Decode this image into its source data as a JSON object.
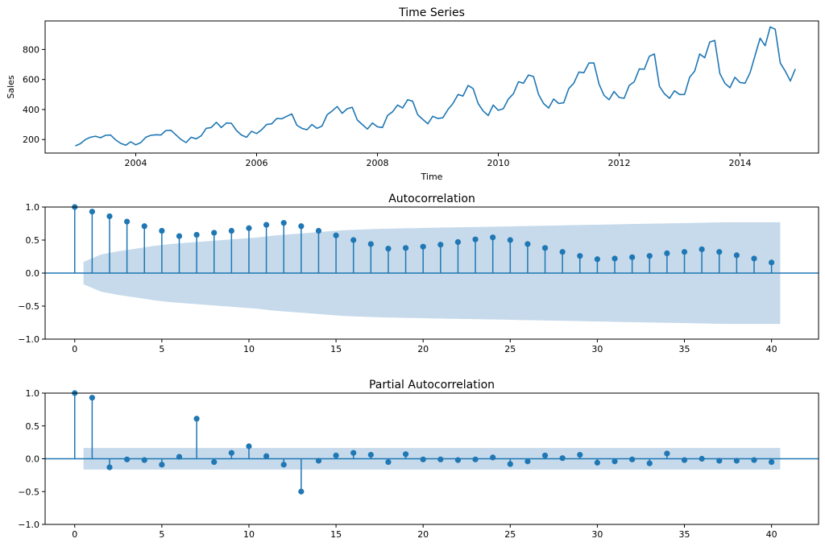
{
  "chart_data": [
    {
      "type": "line",
      "title": "Time Series",
      "xlabel": "Time",
      "ylabel": "Sales",
      "xlim": [
        2002.5,
        2015.3
      ],
      "ylim": [
        110,
        990
      ],
      "xticks": [
        2004,
        2006,
        2008,
        2010,
        2012,
        2014
      ],
      "xtick_labels": [
        "2004",
        "2006",
        "2008",
        "2010",
        "2012",
        "2014"
      ],
      "yticks": [
        200,
        400,
        600,
        800
      ],
      "ytick_labels": [
        "200",
        "400",
        "600",
        "800"
      ],
      "grid": false,
      "line_color": "#1f77b4",
      "series": [
        {
          "x_start": 2003.0,
          "x_step": 0.08333,
          "values": [
            158,
            172,
            200,
            215,
            222,
            212,
            228,
            230,
            198,
            175,
            162,
            185,
            165,
            180,
            215,
            228,
            232,
            230,
            260,
            262,
            230,
            200,
            180,
            215,
            205,
            225,
            275,
            280,
            315,
            280,
            310,
            308,
            260,
            230,
            215,
            255,
            240,
            265,
            300,
            305,
            340,
            338,
            355,
            370,
            295,
            275,
            265,
            300,
            275,
            290,
            365,
            390,
            420,
            375,
            405,
            415,
            330,
            300,
            270,
            310,
            285,
            280,
            360,
            385,
            430,
            410,
            465,
            455,
            365,
            335,
            305,
            355,
            340,
            345,
            400,
            440,
            500,
            490,
            560,
            540,
            440,
            390,
            360,
            430,
            395,
            405,
            470,
            505,
            585,
            575,
            630,
            620,
            500,
            440,
            410,
            470,
            440,
            445,
            540,
            575,
            650,
            645,
            710,
            710,
            570,
            495,
            465,
            520,
            480,
            475,
            560,
            585,
            670,
            668,
            755,
            770,
            555,
            505,
            475,
            525,
            500,
            500,
            615,
            655,
            770,
            745,
            850,
            860,
            640,
            575,
            545,
            615,
            580,
            575,
            645,
            760,
            875,
            825,
            950,
            935,
            710,
            655,
            590,
            670
          ]
        }
      ]
    },
    {
      "type": "stem",
      "title": "Autocorrelation",
      "xlim": [
        -1.7,
        42.7
      ],
      "ylim": [
        -1.0,
        1.0
      ],
      "xticks": [
        0,
        5,
        10,
        15,
        20,
        25,
        30,
        35,
        40
      ],
      "xtick_labels": [
        "0",
        "5",
        "10",
        "15",
        "20",
        "25",
        "30",
        "35",
        "40"
      ],
      "yticks": [
        -1.0,
        -0.5,
        0.0,
        0.5,
        1.0
      ],
      "ytick_labels": [
        "−1.0",
        "−0.5",
        "0.0",
        "0.5",
        "1.0"
      ],
      "confidence_band": [
        0.17,
        0.28,
        0.33,
        0.37,
        0.41,
        0.44,
        0.46,
        0.48,
        0.5,
        0.52,
        0.54,
        0.57,
        0.59,
        0.61,
        0.63,
        0.65,
        0.66,
        0.67,
        0.675,
        0.68,
        0.685,
        0.69,
        0.695,
        0.7,
        0.705,
        0.71,
        0.715,
        0.72,
        0.725,
        0.73,
        0.735,
        0.74,
        0.745,
        0.75,
        0.755,
        0.76,
        0.765,
        0.77,
        0.77,
        0.77
      ],
      "band_color": "#c6daeb",
      "stem_color": "#1f77b4",
      "lags": [
        0,
        1,
        2,
        3,
        4,
        5,
        6,
        7,
        8,
        9,
        10,
        11,
        12,
        13,
        14,
        15,
        16,
        17,
        18,
        19,
        20,
        21,
        22,
        23,
        24,
        25,
        26,
        27,
        28,
        29,
        30,
        31,
        32,
        33,
        34,
        35,
        36,
        37,
        38,
        39,
        40
      ],
      "values": [
        1.0,
        0.93,
        0.86,
        0.78,
        0.71,
        0.64,
        0.56,
        0.58,
        0.61,
        0.64,
        0.68,
        0.73,
        0.76,
        0.71,
        0.64,
        0.57,
        0.5,
        0.44,
        0.37,
        0.38,
        0.4,
        0.43,
        0.47,
        0.51,
        0.54,
        0.5,
        0.44,
        0.38,
        0.32,
        0.26,
        0.21,
        0.22,
        0.24,
        0.26,
        0.3,
        0.32,
        0.36,
        0.32,
        0.27,
        0.22,
        0.16
      ]
    },
    {
      "type": "stem",
      "title": "Partial Autocorrelation",
      "xlim": [
        -1.7,
        42.7
      ],
      "ylim": [
        -1.0,
        1.0
      ],
      "xticks": [
        0,
        5,
        10,
        15,
        20,
        25,
        30,
        35,
        40
      ],
      "xtick_labels": [
        "0",
        "5",
        "10",
        "15",
        "20",
        "25",
        "30",
        "35",
        "40"
      ],
      "yticks": [
        -1.0,
        -0.5,
        0.0,
        0.5,
        1.0
      ],
      "ytick_labels": [
        "−1.0",
        "−0.5",
        "0.0",
        "0.5",
        "1.0"
      ],
      "confidence_band_constant": 0.165,
      "band_color": "#c6daeb",
      "stem_color": "#1f77b4",
      "lags": [
        0,
        1,
        2,
        3,
        4,
        5,
        6,
        7,
        8,
        9,
        10,
        11,
        12,
        13,
        14,
        15,
        16,
        17,
        18,
        19,
        20,
        21,
        22,
        23,
        24,
        25,
        26,
        27,
        28,
        29,
        30,
        31,
        32,
        33,
        34,
        35,
        36,
        37,
        38,
        39,
        40
      ],
      "values": [
        1.0,
        0.93,
        -0.13,
        -0.01,
        -0.02,
        -0.09,
        0.03,
        0.61,
        -0.05,
        0.09,
        0.19,
        0.04,
        -0.09,
        -0.5,
        -0.03,
        0.05,
        0.09,
        0.06,
        -0.05,
        0.07,
        -0.01,
        -0.01,
        -0.02,
        -0.01,
        0.02,
        -0.08,
        -0.04,
        0.05,
        0.01,
        0.06,
        -0.06,
        -0.04,
        -0.01,
        -0.07,
        0.08,
        -0.02,
        0.0,
        -0.03,
        -0.03,
        -0.02,
        -0.05
      ]
    }
  ]
}
